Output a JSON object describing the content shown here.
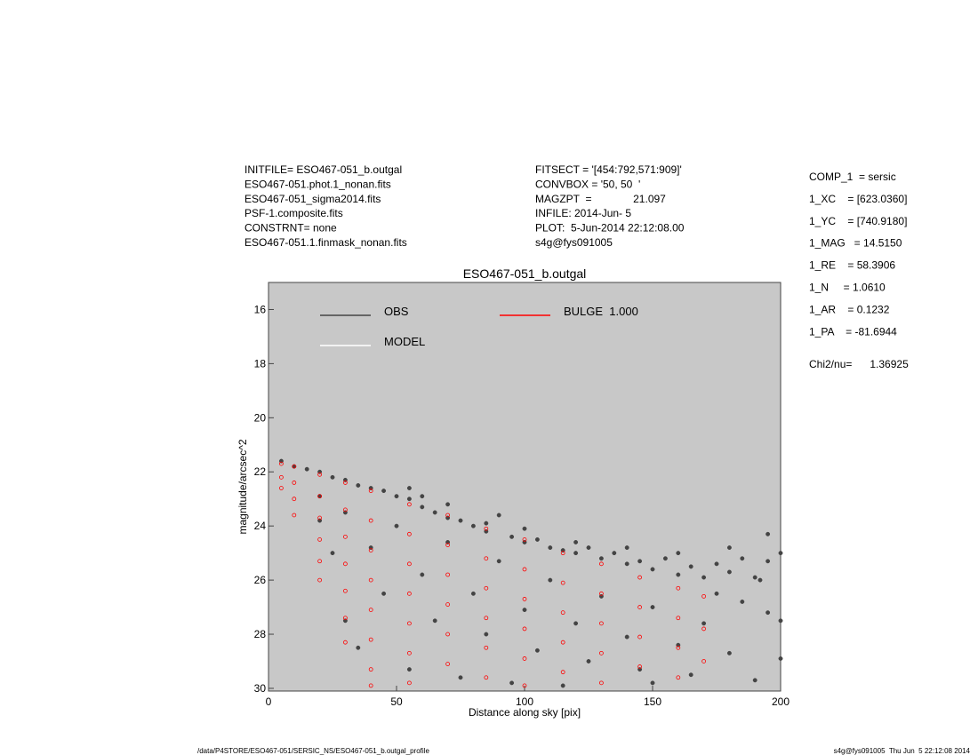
{
  "header": {
    "left": [
      "INITFILE= ESO467-051_b.outgal",
      "ESO467-051.phot.1_nonan.fits",
      "ESO467-051_sigma2014.fits",
      "PSF-1.composite.fits",
      "CONSTRNT= none",
      "ESO467-051.1.finmask_nonan.fits"
    ],
    "middle": [
      "FITSECT = '[454:792,571:909]'",
      "CONVBOX = '50, 50  '",
      "MAGZPT  =              21.097",
      "INFILE: 2014-Jun- 5",
      "PLOT:  5-Jun-2014 22:12:08.00",
      "s4g@fys091005"
    ]
  },
  "params": [
    "COMP_1  = sersic",
    "1_XC    = [623.0360]",
    "1_YC    = [740.9180]",
    "1_MAG   = 14.5150",
    "1_RE    = 58.3906",
    "1_N     = 1.0610",
    "1_AR    = 0.1232",
    "1_PA    = -81.6944",
    "Chi2/nu=      1.36925"
  ],
  "footer": {
    "left": "/data/P4STORE/ESO467-051/SERSIC_NS/ESO467-051_b.outgal_profile",
    "right": "s4g@fys091005  Thu Jun  5 22:12:08 2014"
  },
  "chart_data": {
    "type": "scatter",
    "title": "ESO467-051_b.outgal",
    "xlabel": "Distance along sky [pix]",
    "ylabel": "magnitude/arcsec^2",
    "xlim": [
      0,
      200
    ],
    "ylim": [
      30.1,
      15
    ],
    "xticks": [
      0,
      50,
      100,
      150,
      200
    ],
    "yticks": [
      16,
      18,
      20,
      22,
      24,
      26,
      28,
      30
    ],
    "series": [
      {
        "name": "OBS",
        "color": "#444444",
        "x": [
          5,
          10,
          15,
          20,
          25,
          30,
          35,
          40,
          45,
          50,
          55,
          60,
          65,
          70,
          75,
          80,
          85,
          90,
          95,
          100,
          105,
          110,
          115,
          120,
          125,
          130,
          135,
          140,
          145,
          150,
          155,
          160,
          165,
          170,
          175,
          180,
          185,
          190,
          195,
          200,
          55,
          60,
          70,
          85,
          100,
          120,
          140,
          160,
          180,
          195,
          175,
          185,
          195,
          170,
          150,
          130,
          110,
          90,
          70,
          50,
          30,
          20,
          40,
          60,
          80,
          100,
          120,
          140,
          160,
          180,
          200,
          45,
          65,
          85,
          105,
          125,
          145,
          165,
          190,
          30,
          35,
          55,
          75,
          95,
          20,
          25,
          150,
          115,
          200,
          192
        ],
        "values": [
          21.6,
          21.8,
          21.9,
          22.0,
          22.2,
          22.3,
          22.5,
          22.6,
          22.7,
          22.9,
          23.0,
          23.3,
          23.5,
          23.7,
          23.8,
          24.0,
          24.2,
          23.6,
          24.4,
          24.6,
          24.5,
          24.8,
          24.9,
          25.0,
          24.8,
          25.2,
          25.0,
          25.4,
          25.3,
          25.6,
          25.2,
          25.8,
          25.5,
          25.9,
          25.4,
          25.7,
          25.2,
          25.9,
          25.3,
          25.0,
          22.6,
          22.9,
          23.2,
          23.9,
          24.1,
          24.6,
          24.8,
          25.0,
          24.8,
          24.3,
          26.5,
          26.8,
          27.2,
          27.6,
          27.0,
          26.6,
          26.0,
          25.3,
          24.6,
          24.0,
          23.5,
          22.9,
          24.8,
          25.8,
          26.5,
          27.1,
          27.6,
          28.1,
          28.4,
          28.7,
          28.9,
          26.5,
          27.5,
          28.0,
          28.6,
          29.0,
          29.3,
          29.5,
          29.7,
          27.5,
          28.5,
          29.3,
          29.6,
          29.8,
          23.8,
          25.0,
          29.8,
          29.9,
          27.5,
          26.0
        ]
      },
      {
        "name": "MODEL",
        "color": "#ffffff"
      },
      {
        "name": "BULGE  1.000",
        "color": "#ff0000",
        "x": [
          5,
          5,
          5,
          10,
          10,
          10,
          10,
          20,
          20,
          20,
          20,
          20,
          20,
          30,
          30,
          30,
          30,
          30,
          30,
          30,
          40,
          40,
          40,
          40,
          40,
          40,
          40,
          40,
          55,
          55,
          55,
          55,
          55,
          55,
          55,
          70,
          70,
          70,
          70,
          70,
          70,
          85,
          85,
          85,
          85,
          85,
          85,
          100,
          100,
          100,
          100,
          100,
          100,
          115,
          115,
          115,
          115,
          115,
          130,
          130,
          130,
          130,
          130,
          145,
          145,
          145,
          145,
          160,
          160,
          160,
          160,
          170,
          170,
          170
        ],
        "values": [
          21.7,
          22.2,
          22.6,
          21.8,
          22.4,
          23.0,
          23.6,
          22.1,
          22.9,
          23.7,
          24.5,
          25.3,
          26.0,
          22.4,
          23.4,
          24.4,
          25.4,
          26.4,
          27.4,
          28.3,
          22.7,
          23.8,
          24.9,
          26.0,
          27.1,
          28.2,
          29.3,
          29.9,
          23.2,
          24.3,
          25.4,
          26.5,
          27.6,
          28.7,
          29.8,
          23.6,
          24.7,
          25.8,
          26.9,
          28.0,
          29.1,
          24.1,
          25.2,
          26.3,
          27.4,
          28.5,
          29.6,
          24.5,
          25.6,
          26.7,
          27.8,
          28.9,
          29.9,
          25.0,
          26.1,
          27.2,
          28.3,
          29.4,
          25.4,
          26.5,
          27.6,
          28.7,
          29.8,
          25.9,
          27.0,
          28.1,
          29.2,
          26.3,
          27.4,
          28.5,
          29.6,
          26.6,
          27.8,
          29.0
        ]
      }
    ]
  }
}
